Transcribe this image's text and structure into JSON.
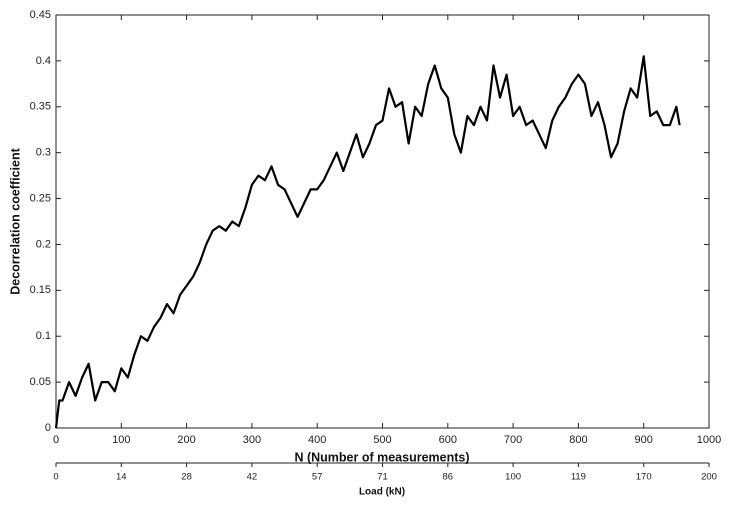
{
  "chart_data": {
    "type": "line",
    "x_label": "N (Number of measurements)",
    "y_label": "Decorrelation coefficient",
    "x2_label": "Load (kN)",
    "xlim": [
      0,
      1000
    ],
    "xticks": [
      0,
      100,
      200,
      300,
      400,
      500,
      600,
      700,
      800,
      900,
      1000
    ],
    "ylim": [
      0,
      0.45
    ],
    "yticks": [
      0,
      0.05,
      0.1,
      0.15,
      0.2,
      0.25,
      0.3,
      0.35,
      0.4,
      0.45
    ],
    "x2ticks": [
      0,
      {
        "value": 100,
        "label": "14"
      },
      {
        "value": 200,
        "label": "28"
      },
      {
        "value": 300,
        "label": "42"
      },
      {
        "value": 400,
        "label": "57"
      },
      {
        "value": 500,
        "label": "71"
      },
      {
        "value": 600,
        "label": "86"
      },
      {
        "value": 700,
        "label": "100"
      },
      {
        "value": 800,
        "label": "119"
      },
      {
        "value": 900,
        "label": "170"
      },
      {
        "value": 1000,
        "label": "200"
      }
    ],
    "series": [
      {
        "color": "#000000",
        "x": [
          0,
          5,
          10,
          20,
          30,
          40,
          50,
          60,
          70,
          80,
          90,
          100,
          110,
          120,
          130,
          140,
          150,
          160,
          170,
          180,
          190,
          200,
          210,
          220,
          230,
          240,
          250,
          260,
          270,
          280,
          290,
          300,
          310,
          320,
          330,
          340,
          350,
          360,
          370,
          380,
          390,
          400,
          410,
          420,
          430,
          440,
          450,
          460,
          470,
          480,
          490,
          500,
          510,
          520,
          530,
          540,
          550,
          560,
          570,
          580,
          590,
          600,
          610,
          620,
          630,
          640,
          650,
          660,
          670,
          680,
          690,
          700,
          710,
          720,
          730,
          740,
          750,
          760,
          770,
          780,
          790,
          800,
          810,
          820,
          830,
          840,
          850,
          860,
          870,
          880,
          890,
          900,
          910,
          920,
          930,
          940,
          950,
          955
        ],
        "values": [
          0,
          0.03,
          0.03,
          0.05,
          0.035,
          0.055,
          0.07,
          0.03,
          0.05,
          0.05,
          0.04,
          0.065,
          0.055,
          0.08,
          0.1,
          0.095,
          0.11,
          0.12,
          0.135,
          0.125,
          0.145,
          0.155,
          0.165,
          0.18,
          0.2,
          0.215,
          0.22,
          0.215,
          0.225,
          0.22,
          0.24,
          0.265,
          0.275,
          0.27,
          0.285,
          0.265,
          0.26,
          0.245,
          0.23,
          0.245,
          0.26,
          0.26,
          0.27,
          0.285,
          0.3,
          0.28,
          0.3,
          0.32,
          0.295,
          0.31,
          0.33,
          0.335,
          0.37,
          0.35,
          0.355,
          0.31,
          0.35,
          0.34,
          0.375,
          0.395,
          0.37,
          0.36,
          0.32,
          0.3,
          0.34,
          0.33,
          0.35,
          0.335,
          0.395,
          0.36,
          0.385,
          0.34,
          0.35,
          0.33,
          0.335,
          0.32,
          0.305,
          0.335,
          0.35,
          0.36,
          0.375,
          0.385,
          0.375,
          0.34,
          0.355,
          0.33,
          0.295,
          0.31,
          0.345,
          0.37,
          0.36,
          0.405,
          0.34,
          0.345,
          0.33,
          0.33,
          0.35,
          0.33
        ]
      }
    ]
  }
}
